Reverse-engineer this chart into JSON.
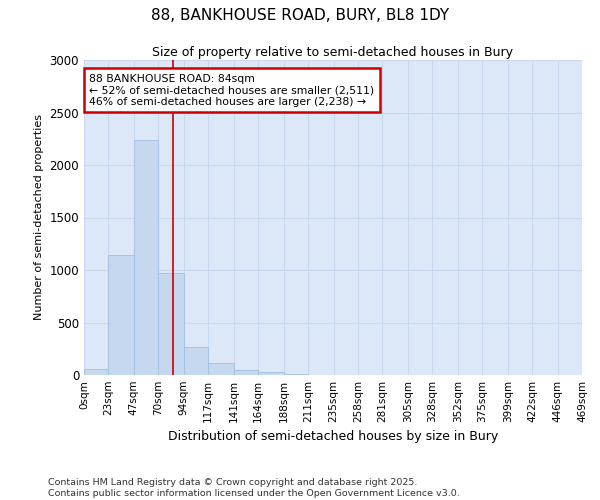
{
  "title": "88, BANKHOUSE ROAD, BURY, BL8 1DY",
  "subtitle": "Size of property relative to semi-detached houses in Bury",
  "xlabel": "Distribution of semi-detached houses by size in Bury",
  "ylabel": "Number of semi-detached properties",
  "footer_line1": "Contains HM Land Registry data © Crown copyright and database right 2025.",
  "footer_line2": "Contains public sector information licensed under the Open Government Licence v3.0.",
  "bin_labels": [
    "0sqm",
    "23sqm",
    "47sqm",
    "70sqm",
    "94sqm",
    "117sqm",
    "141sqm",
    "164sqm",
    "188sqm",
    "211sqm",
    "235sqm",
    "258sqm",
    "281sqm",
    "305sqm",
    "328sqm",
    "352sqm",
    "375sqm",
    "399sqm",
    "422sqm",
    "446sqm",
    "469sqm"
  ],
  "bin_edges": [
    0,
    23,
    47,
    70,
    94,
    117,
    141,
    164,
    188,
    211,
    235,
    258,
    281,
    305,
    328,
    352,
    375,
    399,
    422,
    446,
    469
  ],
  "bar_heights": [
    60,
    1145,
    2235,
    970,
    265,
    110,
    50,
    25,
    5,
    0,
    0,
    0,
    0,
    0,
    0,
    0,
    0,
    0,
    0,
    0
  ],
  "bar_color": "#c5d8f0",
  "bar_edge_color": "#a0bfe0",
  "grid_color": "#c8d8ee",
  "plot_bg_color": "#dce8f8",
  "figure_bg_color": "#ffffff",
  "property_size": 84,
  "marker_line_color": "#cc0000",
  "annotation_line1": "88 BANKHOUSE ROAD: 84sqm",
  "annotation_line2": "← 52% of semi-detached houses are smaller (2,511)",
  "annotation_line3": "46% of semi-detached houses are larger (2,238) →",
  "annotation_box_color": "#ffffff",
  "annotation_border_color": "#cc0000",
  "ylim": [
    0,
    3000
  ],
  "yticks": [
    0,
    500,
    1000,
    1500,
    2000,
    2500,
    3000
  ]
}
